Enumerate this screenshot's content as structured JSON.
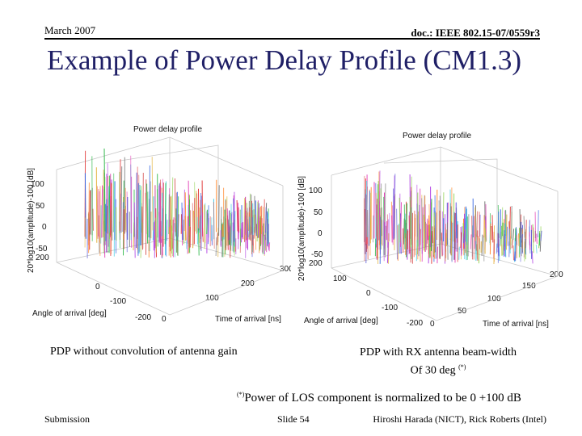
{
  "header": {
    "date": "March 2007",
    "doc": "doc.: IEEE 802.15-07/0559r3"
  },
  "title": "Example of Power Delay Profile (CM1.3)",
  "plots": [
    {
      "title": "Power delay profile",
      "zlabel": "20*log10(amplitude)-100 [dB]",
      "xlabel": "Angle of arrival [deg]",
      "ylabel": "Time of arrival [ns]",
      "z_ticks": [
        "100",
        "50",
        "0",
        "-50"
      ],
      "angle_ticks": [
        "200",
        "0",
        "-100",
        "-200"
      ],
      "time_ticks": [
        "300",
        "200",
        "100",
        "0"
      ]
    },
    {
      "title": "Power delay profile",
      "zlabel": "20*log10(amplitude)-100 [dB]",
      "xlabel": "Angle of arrival [deg]",
      "ylabel": "Time of arrival [ns]",
      "z_ticks": [
        "100",
        "50",
        "0",
        "-50"
      ],
      "angle_ticks": [
        "200",
        "100",
        "0",
        "-100",
        "-200"
      ],
      "time_ticks": [
        "200",
        "150",
        "100",
        "50",
        "0"
      ]
    }
  ],
  "captions": {
    "left": "PDP without convolution of antenna gain",
    "right_line1": "PDP with RX antenna beam-width",
    "right_line2": "Of 30 deg",
    "right_mark": "(*)"
  },
  "note": {
    "mark": "(*)",
    "text": "Power of LOS component is normalized to be 0 +100 dB"
  },
  "footer": {
    "left": "Submission",
    "center": "Slide 54",
    "right": "Hiroshi Harada (NICT), Rick Roberts (Intel)"
  }
}
